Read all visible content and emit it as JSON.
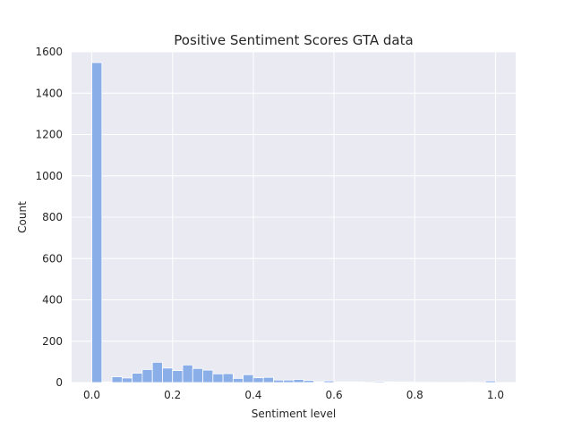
{
  "chart_data": {
    "type": "bar",
    "title": "Positive Sentiment Scores GTA data",
    "xlabel": "Sentiment level",
    "ylabel": "Count",
    "xlim": [
      -0.05,
      1.05
    ],
    "ylim": [
      0,
      1600
    ],
    "xticks": [
      0.0,
      0.2,
      0.4,
      0.6,
      0.8,
      1.0
    ],
    "xtick_labels": [
      "0.0",
      "0.2",
      "0.4",
      "0.6",
      "0.8",
      "1.0"
    ],
    "yticks": [
      0,
      200,
      400,
      600,
      800,
      1000,
      1200,
      1400,
      1600
    ],
    "ytick_labels": [
      "0",
      "200",
      "400",
      "600",
      "800",
      "1000",
      "1200",
      "1400",
      "1600"
    ],
    "grid": true,
    "bar_color": "#8aaee8",
    "edge_color": "#ffffff",
    "background_color": "#eaeaf2",
    "grid_color": "#ffffff",
    "bin_width": 0.025,
    "bins_start": [
      0.0,
      0.025,
      0.05,
      0.075,
      0.1,
      0.125,
      0.15,
      0.175,
      0.2,
      0.225,
      0.25,
      0.275,
      0.3,
      0.325,
      0.35,
      0.375,
      0.4,
      0.425,
      0.45,
      0.475,
      0.5,
      0.525,
      0.55,
      0.575,
      0.6,
      0.625,
      0.65,
      0.675,
      0.7,
      0.725,
      0.75,
      0.775,
      0.8,
      0.825,
      0.85,
      0.875,
      0.9,
      0.925,
      0.95,
      0.975
    ],
    "counts": [
      1548,
      3,
      28,
      22,
      45,
      63,
      98,
      70,
      58,
      85,
      68,
      60,
      42,
      43,
      20,
      38,
      23,
      25,
      12,
      12,
      15,
      10,
      3,
      8,
      3,
      3,
      3,
      0,
      5,
      3,
      2,
      2,
      1,
      1,
      0,
      0,
      0,
      1,
      0,
      8
    ]
  }
}
